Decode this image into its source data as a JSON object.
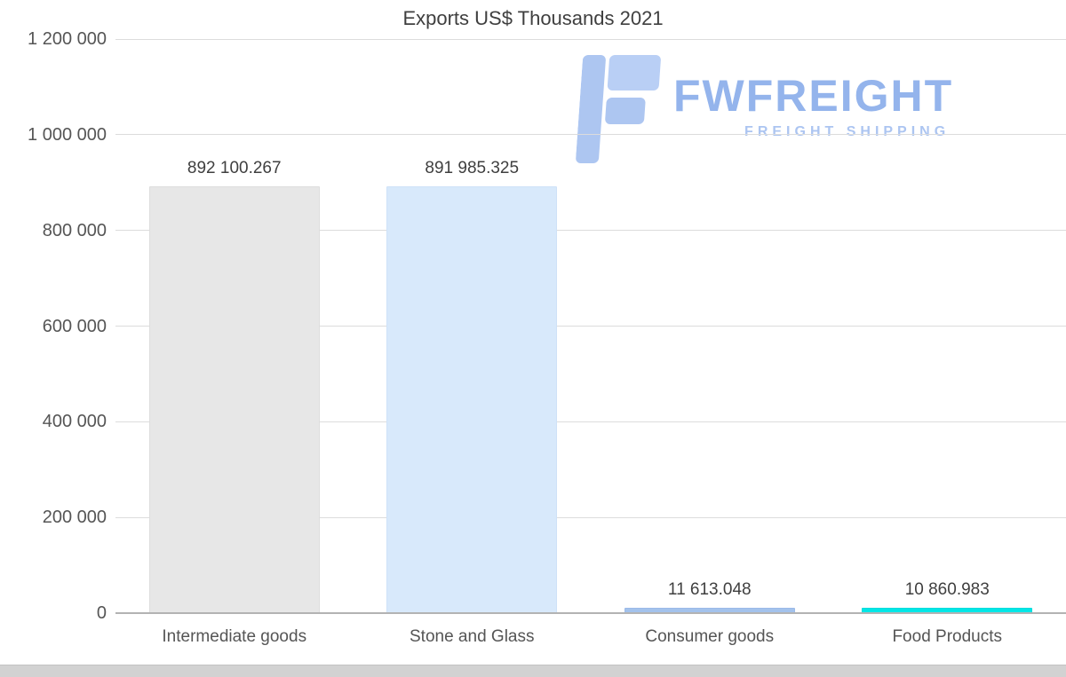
{
  "chart_data": {
    "type": "bar",
    "title": "Exports US$ Thousands 2021",
    "categories": [
      "Intermediate goods",
      "Stone and Glass",
      "Consumer goods",
      "Food Products"
    ],
    "values": [
      892100.267,
      891985.325,
      11613.048,
      10860.983
    ],
    "value_labels": [
      "892 100.267",
      "891 985.325",
      "11 613.048",
      "10 860.983"
    ],
    "bar_colors": [
      "#e7e7e7",
      "#d8e9fb",
      "#a3c2ec",
      "#00e6e6"
    ],
    "bar_border_colors": [
      "#dddddd",
      "#cfe2f8",
      "#9bbae8",
      "#00dcdc"
    ],
    "xlabel": "",
    "ylabel": "",
    "ylim": [
      0,
      1200000
    ],
    "yticks": [
      {
        "value": 0,
        "label": "0"
      },
      {
        "value": 200000,
        "label": "200 000"
      },
      {
        "value": 400000,
        "label": "400 000"
      },
      {
        "value": 600000,
        "label": "600 000"
      },
      {
        "value": 800000,
        "label": "800 000"
      },
      {
        "value": 1000000,
        "label": "1 000 000"
      },
      {
        "value": 1200000,
        "label": "1 200 000"
      }
    ],
    "grid": "horizontal",
    "legend": "none"
  },
  "logo": {
    "wordmark": "FWFREIGHT",
    "tagline": "FREIGHT SHIPPING",
    "icon": "fwfreight-f-icon",
    "color_primary": "#8fb1ec",
    "color_secondary": "#aac6f2"
  }
}
